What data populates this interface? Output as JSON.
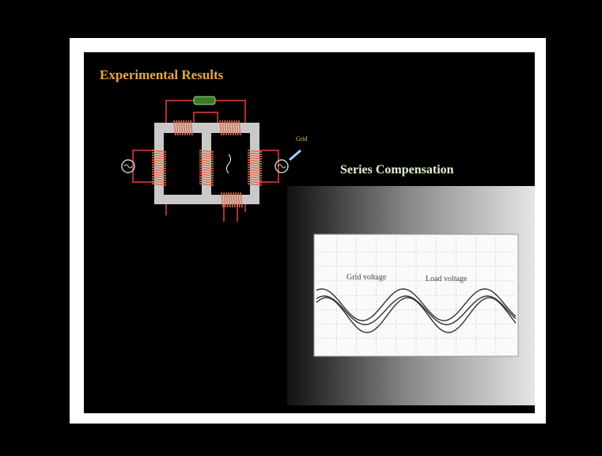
{
  "slide": {
    "title": "Experimental Results",
    "subtitle": "Series Compensation",
    "diagram": {
      "grid_label": "Grid"
    },
    "scope": {
      "labels": [
        "Grid voltage",
        "Load voltage"
      ]
    }
  }
}
